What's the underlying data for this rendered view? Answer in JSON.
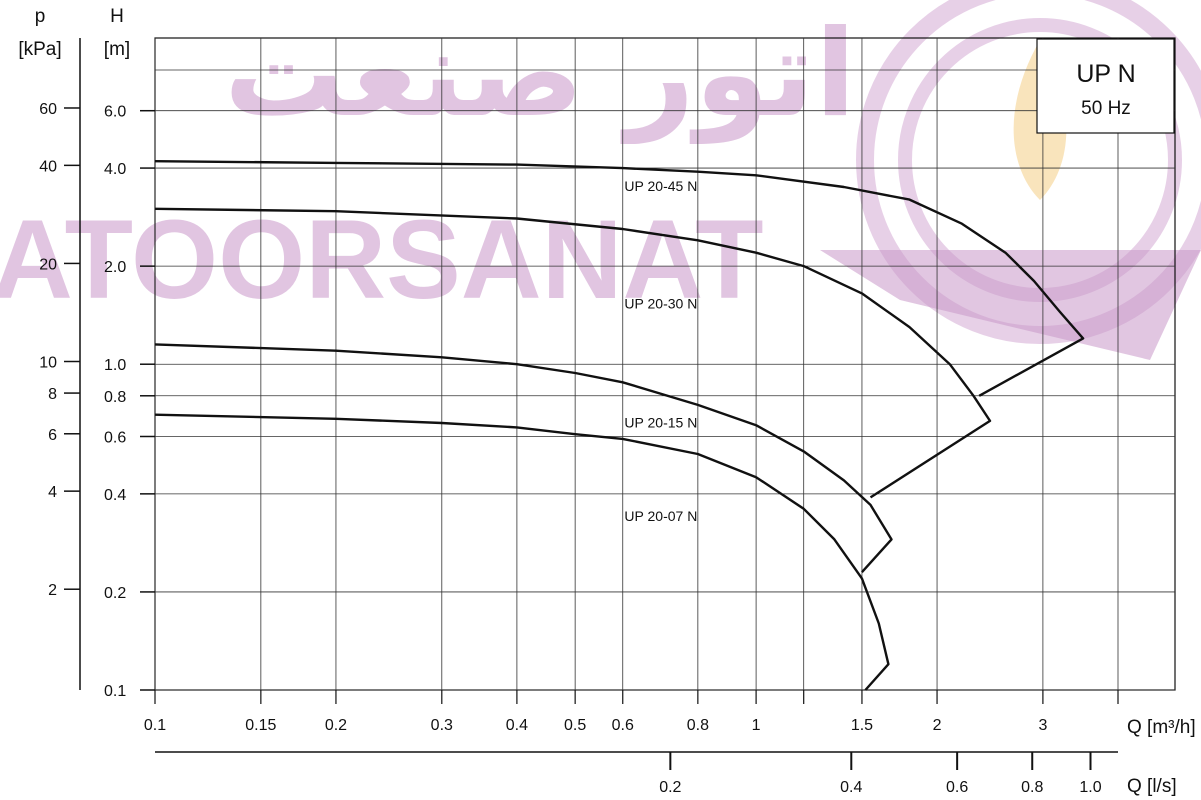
{
  "chart_data": {
    "type": "line",
    "x_scale": "log",
    "y_scale": "log",
    "xlim": [
      0.1,
      4.5
    ],
    "ylim": [
      0.1,
      8
    ],
    "legend": {
      "title": "UP N",
      "subtitle": "50 Hz",
      "placement": "top-right"
    },
    "axes": {
      "p_label_line1": "p",
      "p_label_line2": "[kPa]",
      "h_label_line1": "H",
      "h_label_line2": "[m]",
      "q_m3h_label": "Q [m³/h]",
      "q_ls_label": "Q [l/s]"
    },
    "x_ticks": [
      {
        "v": 0.1,
        "label": "0.1"
      },
      {
        "v": 0.15,
        "label": "0.15"
      },
      {
        "v": 0.2,
        "label": "0.2"
      },
      {
        "v": 0.3,
        "label": "0.3"
      },
      {
        "v": 0.4,
        "label": "0.4"
      },
      {
        "v": 0.5,
        "label": "0.5"
      },
      {
        "v": 0.6,
        "label": "0.6"
      },
      {
        "v": 0.8,
        "label": "0.8"
      },
      {
        "v": 1,
        "label": "1"
      },
      {
        "v": 1.5,
        "label": "1.5"
      },
      {
        "v": 2,
        "label": "2"
      },
      {
        "v": 3,
        "label": "3"
      }
    ],
    "x_gridlines": [
      0.1,
      0.15,
      0.2,
      0.3,
      0.4,
      0.5,
      0.6,
      0.8,
      1,
      1.2,
      1.5,
      2,
      3,
      4
    ],
    "h_ticks": [
      {
        "v": 0.1,
        "label": "0.1"
      },
      {
        "v": 0.2,
        "label": "0.2"
      },
      {
        "v": 0.4,
        "label": "0.4"
      },
      {
        "v": 0.6,
        "label": "0.6"
      },
      {
        "v": 0.8,
        "label": "0.8"
      },
      {
        "v": 1.0,
        "label": "1.0"
      },
      {
        "v": 2.0,
        "label": "2.0"
      },
      {
        "v": 4.0,
        "label": "4.0"
      },
      {
        "v": 6.0,
        "label": "6.0"
      }
    ],
    "y_gridlines": [
      0.1,
      0.2,
      0.4,
      0.6,
      0.8,
      1.0,
      2.0,
      4.0,
      6.0,
      8.0
    ],
    "p_ticks": [
      {
        "v": 2,
        "label": "2"
      },
      {
        "v": 4,
        "label": "4"
      },
      {
        "v": 6,
        "label": "6"
      },
      {
        "v": 8,
        "label": "8"
      },
      {
        "v": 10,
        "label": "10"
      },
      {
        "v": 20,
        "label": "20"
      },
      {
        "v": 40,
        "label": "40"
      },
      {
        "v": 60,
        "label": "60"
      }
    ],
    "q_ls_ticks": [
      {
        "v": 0.2,
        "label": "0.2"
      },
      {
        "v": 0.4,
        "label": "0.4"
      },
      {
        "v": 0.6,
        "label": "0.6"
      },
      {
        "v": 0.8,
        "label": "0.8"
      },
      {
        "v": 1.0,
        "label": "1.0"
      }
    ],
    "series": [
      {
        "name": "UP 20-45 N",
        "label_at": [
          0.68,
          3.4
        ],
        "points": [
          [
            0.1,
            4.2
          ],
          [
            0.2,
            4.15
          ],
          [
            0.4,
            4.1
          ],
          [
            0.6,
            4.0
          ],
          [
            0.8,
            3.9
          ],
          [
            1.0,
            3.8
          ],
          [
            1.4,
            3.5
          ],
          [
            1.8,
            3.2
          ],
          [
            2.2,
            2.7
          ],
          [
            2.6,
            2.2
          ],
          [
            2.9,
            1.8
          ],
          [
            3.2,
            1.45
          ],
          [
            3.5,
            1.2
          ],
          [
            2.35,
            0.8
          ]
        ]
      },
      {
        "name": "UP 20-30 N",
        "label_at": [
          0.68,
          1.48
        ],
        "points": [
          [
            0.1,
            3.0
          ],
          [
            0.2,
            2.95
          ],
          [
            0.4,
            2.8
          ],
          [
            0.6,
            2.6
          ],
          [
            0.8,
            2.4
          ],
          [
            1.0,
            2.2
          ],
          [
            1.2,
            2.0
          ],
          [
            1.5,
            1.65
          ],
          [
            1.8,
            1.3
          ],
          [
            2.1,
            1.0
          ],
          [
            2.3,
            0.8
          ],
          [
            2.45,
            0.67
          ],
          [
            1.55,
            0.39
          ]
        ]
      },
      {
        "name": "UP 20-15 N",
        "label_at": [
          0.68,
          0.64
        ],
        "points": [
          [
            0.1,
            1.15
          ],
          [
            0.2,
            1.1
          ],
          [
            0.3,
            1.05
          ],
          [
            0.4,
            1.0
          ],
          [
            0.5,
            0.94
          ],
          [
            0.6,
            0.88
          ],
          [
            0.8,
            0.75
          ],
          [
            1.0,
            0.65
          ],
          [
            1.2,
            0.54
          ],
          [
            1.4,
            0.44
          ],
          [
            1.55,
            0.37
          ],
          [
            1.68,
            0.29
          ],
          [
            1.5,
            0.23
          ]
        ]
      },
      {
        "name": "UP 20-07 N",
        "label_at": [
          0.68,
          0.33
        ],
        "points": [
          [
            0.1,
            0.7
          ],
          [
            0.2,
            0.68
          ],
          [
            0.3,
            0.66
          ],
          [
            0.4,
            0.64
          ],
          [
            0.5,
            0.61
          ],
          [
            0.6,
            0.59
          ],
          [
            0.8,
            0.53
          ],
          [
            1.0,
            0.45
          ],
          [
            1.2,
            0.36
          ],
          [
            1.35,
            0.29
          ],
          [
            1.5,
            0.22
          ],
          [
            1.6,
            0.16
          ],
          [
            1.66,
            0.12
          ],
          [
            1.52,
            0.1
          ]
        ]
      }
    ]
  },
  "watermark": {
    "latin": "ATOORSANAT",
    "arabic": "اتور صنعت"
  }
}
